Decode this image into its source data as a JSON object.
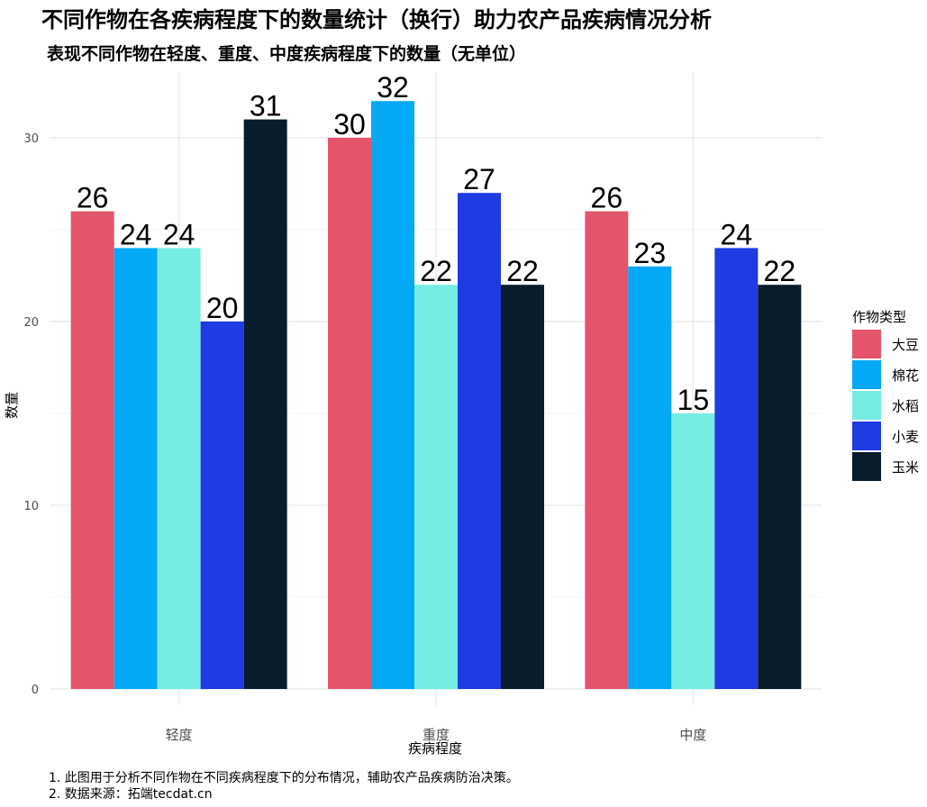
{
  "chart_data": {
    "type": "bar",
    "title": "不同作物在各疾病程度下的数量统计（换行）助力农产品疾病情况分析",
    "subtitle": "表现不同作物在轻度、重度、中度疾病程度下的数量（无单位）",
    "xlabel": "疾病程度",
    "ylabel": "数量",
    "categories": [
      "轻度",
      "重度",
      "中度"
    ],
    "ylim": [
      0,
      34
    ],
    "yticks": [
      0,
      10,
      20,
      30
    ],
    "grid": true,
    "legend_title": "作物类型",
    "legend_position": "right",
    "series": [
      {
        "name": "大豆",
        "color": "#E4546A",
        "values": [
          26,
          30,
          26
        ]
      },
      {
        "name": "棉花",
        "color": "#03A9F4",
        "values": [
          24,
          32,
          23
        ]
      },
      {
        "name": "水稻",
        "color": "#76EDE3",
        "values": [
          24,
          22,
          15
        ]
      },
      {
        "name": "小麦",
        "color": "#1F3BE3",
        "values": [
          20,
          27,
          24
        ]
      },
      {
        "name": "玉米",
        "color": "#081C2C",
        "values": [
          31,
          22,
          22
        ]
      }
    ],
    "captions": [
      "1. 此图用于分析不同作物在不同疾病程度下的分布情况，辅助农产品疾病防治决策。",
      "2. 数据来源：拓端tecdat.cn"
    ]
  }
}
